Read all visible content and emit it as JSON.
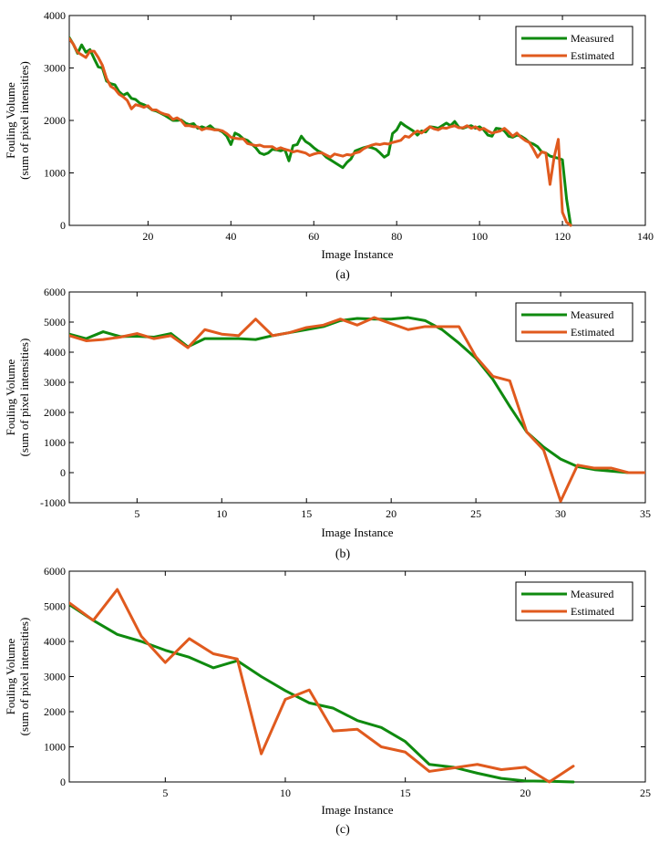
{
  "colors": {
    "measured": "#0f8a0f",
    "estimated": "#e05a1e"
  },
  "chart_data": [
    {
      "type": "line",
      "caption": "(a)",
      "xlabel": "Image Instance",
      "ylabel": [
        "Fouling Volume",
        "(sum of pixel intensities)"
      ],
      "xlim": [
        1,
        140
      ],
      "ylim": [
        0,
        4000
      ],
      "xticks": [
        20,
        40,
        60,
        80,
        100,
        120,
        140
      ],
      "yticks": [
        0,
        1000,
        2000,
        3000,
        4000
      ],
      "legend": {
        "position": "top-right",
        "entries": [
          "Measured",
          "Estimated"
        ]
      },
      "series": [
        {
          "name": "Measured",
          "x": [
            1,
            2,
            3,
            4,
            5,
            6,
            7,
            8,
            9,
            10,
            11,
            12,
            13,
            14,
            15,
            16,
            17,
            18,
            19,
            20,
            21,
            22,
            23,
            24,
            25,
            26,
            27,
            28,
            29,
            30,
            31,
            32,
            33,
            34,
            35,
            36,
            37,
            38,
            39,
            40,
            41,
            42,
            43,
            44,
            45,
            46,
            47,
            48,
            49,
            50,
            51,
            52,
            53,
            54,
            55,
            56,
            57,
            58,
            59,
            60,
            61,
            62,
            63,
            64,
            65,
            66,
            67,
            68,
            69,
            70,
            71,
            72,
            73,
            74,
            75,
            76,
            77,
            78,
            79,
            80,
            81,
            82,
            83,
            84,
            85,
            86,
            87,
            88,
            89,
            90,
            91,
            92,
            93,
            94,
            95,
            96,
            97,
            98,
            99,
            100,
            101,
            102,
            103,
            104,
            105,
            106,
            107,
            108,
            109,
            110,
            111,
            112,
            113,
            114,
            115,
            116,
            117,
            118,
            119,
            120,
            121,
            122
          ],
          "values": [
            3580,
            3450,
            3280,
            3440,
            3300,
            3350,
            3180,
            3020,
            3000,
            2750,
            2700,
            2680,
            2550,
            2480,
            2520,
            2420,
            2400,
            2330,
            2300,
            2260,
            2200,
            2180,
            2140,
            2100,
            2050,
            2000,
            2000,
            2010,
            1950,
            1920,
            1940,
            1850,
            1880,
            1850,
            1900,
            1830,
            1820,
            1780,
            1700,
            1540,
            1760,
            1720,
            1650,
            1620,
            1550,
            1480,
            1380,
            1350,
            1380,
            1450,
            1440,
            1420,
            1450,
            1230,
            1520,
            1540,
            1700,
            1600,
            1550,
            1480,
            1420,
            1380,
            1300,
            1250,
            1200,
            1150,
            1100,
            1200,
            1270,
            1420,
            1450,
            1480,
            1500,
            1480,
            1450,
            1380,
            1300,
            1350,
            1750,
            1820,
            1960,
            1900,
            1850,
            1800,
            1720,
            1800,
            1780,
            1880,
            1870,
            1850,
            1900,
            1950,
            1900,
            1980,
            1870,
            1850,
            1880,
            1900,
            1850,
            1880,
            1820,
            1720,
            1700,
            1850,
            1840,
            1800,
            1700,
            1680,
            1720,
            1700,
            1650,
            1580,
            1550,
            1500,
            1400,
            1380,
            1320,
            1300,
            1280,
            1250,
            500,
            0
          ]
        },
        {
          "name": "Estimated",
          "x": [
            1,
            2,
            3,
            4,
            5,
            6,
            7,
            8,
            9,
            10,
            11,
            12,
            13,
            14,
            15,
            16,
            17,
            18,
            19,
            20,
            21,
            22,
            23,
            24,
            25,
            26,
            27,
            28,
            29,
            30,
            31,
            32,
            33,
            34,
            35,
            36,
            37,
            38,
            39,
            40,
            41,
            42,
            43,
            44,
            45,
            46,
            47,
            48,
            49,
            50,
            51,
            52,
            53,
            54,
            55,
            56,
            57,
            58,
            59,
            60,
            61,
            62,
            63,
            64,
            65,
            66,
            67,
            68,
            69,
            70,
            71,
            72,
            73,
            74,
            75,
            76,
            77,
            78,
            79,
            80,
            81,
            82,
            83,
            84,
            85,
            86,
            87,
            88,
            89,
            90,
            91,
            92,
            93,
            94,
            95,
            96,
            97,
            98,
            99,
            100,
            101,
            102,
            103,
            104,
            105,
            106,
            107,
            108,
            109,
            110,
            111,
            112,
            113,
            114,
            115,
            116,
            117,
            118,
            119,
            120,
            121,
            122
          ],
          "values": [
            3560,
            3450,
            3300,
            3250,
            3200,
            3320,
            3320,
            3200,
            3050,
            2800,
            2650,
            2600,
            2500,
            2450,
            2380,
            2220,
            2300,
            2280,
            2250,
            2280,
            2200,
            2200,
            2150,
            2120,
            2100,
            2020,
            2050,
            2000,
            1900,
            1900,
            1880,
            1880,
            1820,
            1850,
            1840,
            1820,
            1820,
            1800,
            1750,
            1680,
            1660,
            1650,
            1650,
            1560,
            1540,
            1520,
            1530,
            1500,
            1500,
            1500,
            1450,
            1480,
            1450,
            1430,
            1400,
            1420,
            1400,
            1380,
            1330,
            1360,
            1380,
            1380,
            1340,
            1300,
            1360,
            1340,
            1320,
            1350,
            1340,
            1380,
            1400,
            1460,
            1500,
            1530,
            1550,
            1540,
            1560,
            1550,
            1580,
            1600,
            1620,
            1700,
            1680,
            1750,
            1800,
            1760,
            1820,
            1880,
            1840,
            1820,
            1860,
            1850,
            1880,
            1900,
            1860,
            1860,
            1900,
            1850,
            1880,
            1820,
            1850,
            1800,
            1760,
            1780,
            1800,
            1850,
            1780,
            1700,
            1760,
            1680,
            1620,
            1580,
            1450,
            1300,
            1400,
            1380,
            780,
            1300,
            1640,
            250,
            60,
            0
          ]
        }
      ]
    },
    {
      "type": "line",
      "caption": "(b)",
      "xlabel": "Image Instance",
      "ylabel": [
        "Fouling Volume",
        "(sum of pixel intensities)"
      ],
      "xlim": [
        1,
        35
      ],
      "ylim": [
        -1000,
        6000
      ],
      "xticks": [
        5,
        10,
        15,
        20,
        25,
        30,
        35
      ],
      "yticks": [
        -1000,
        0,
        1000,
        2000,
        3000,
        4000,
        5000,
        6000
      ],
      "legend": {
        "position": "top-right",
        "entries": [
          "Measured",
          "Estimated"
        ]
      },
      "series": [
        {
          "name": "Measured",
          "x": [
            1,
            2,
            3,
            4,
            5,
            6,
            7,
            8,
            9,
            10,
            11,
            12,
            13,
            14,
            15,
            16,
            17,
            18,
            19,
            20,
            21,
            22,
            23,
            24,
            25,
            26,
            27,
            28,
            29,
            30,
            31,
            32,
            33,
            34,
            35
          ],
          "values": [
            4600,
            4450,
            4680,
            4520,
            4530,
            4500,
            4620,
            4180,
            4450,
            4450,
            4450,
            4420,
            4550,
            4650,
            4750,
            4850,
            5050,
            5120,
            5100,
            5100,
            5150,
            5050,
            4750,
            4300,
            3800,
            3100,
            2200,
            1350,
            850,
            450,
            200,
            100,
            50,
            0,
            0
          ]
        },
        {
          "name": "Estimated",
          "x": [
            1,
            2,
            3,
            4,
            5,
            6,
            7,
            8,
            9,
            10,
            11,
            12,
            13,
            14,
            15,
            16,
            17,
            18,
            19,
            20,
            21,
            22,
            23,
            24,
            25,
            26,
            27,
            28,
            29,
            30,
            31,
            32,
            33,
            34,
            35
          ],
          "values": [
            4550,
            4380,
            4420,
            4500,
            4620,
            4450,
            4550,
            4150,
            4750,
            4600,
            4550,
            5100,
            4550,
            4650,
            4820,
            4900,
            5100,
            4900,
            5150,
            4950,
            4750,
            4850,
            4850,
            4850,
            3850,
            3200,
            3050,
            1350,
            750,
            -950,
            250,
            150,
            150,
            0,
            0
          ]
        }
      ]
    },
    {
      "type": "line",
      "caption": "(c)",
      "xlabel": "Image Instance",
      "ylabel": [
        "Fouling Volume",
        "(sum of pixel intensities)"
      ],
      "xlim": [
        1,
        25
      ],
      "ylim": [
        0,
        6000
      ],
      "xticks": [
        5,
        10,
        15,
        20,
        25
      ],
      "yticks": [
        0,
        1000,
        2000,
        3000,
        4000,
        5000,
        6000
      ],
      "legend": {
        "position": "top-right",
        "entries": [
          "Measured",
          "Estimated"
        ]
      },
      "series": [
        {
          "name": "Measured",
          "x": [
            1,
            2,
            3,
            4,
            5,
            6,
            7,
            8,
            9,
            10,
            11,
            12,
            13,
            14,
            15,
            16,
            17,
            18,
            19,
            20,
            21,
            22
          ],
          "values": [
            5050,
            4600,
            4200,
            4000,
            3750,
            3550,
            3250,
            3450,
            3000,
            2600,
            2250,
            2100,
            1750,
            1550,
            1150,
            500,
            420,
            250,
            100,
            30,
            20,
            0
          ]
        },
        {
          "name": "Estimated",
          "x": [
            1,
            2,
            3,
            4,
            5,
            6,
            7,
            8,
            9,
            10,
            11,
            12,
            13,
            14,
            15,
            16,
            17,
            18,
            19,
            20,
            21,
            22
          ],
          "values": [
            5100,
            4600,
            5480,
            4150,
            3400,
            4080,
            3650,
            3500,
            800,
            2350,
            2620,
            1450,
            1500,
            1000,
            850,
            300,
            400,
            500,
            350,
            420,
            0,
            450
          ]
        }
      ]
    }
  ]
}
